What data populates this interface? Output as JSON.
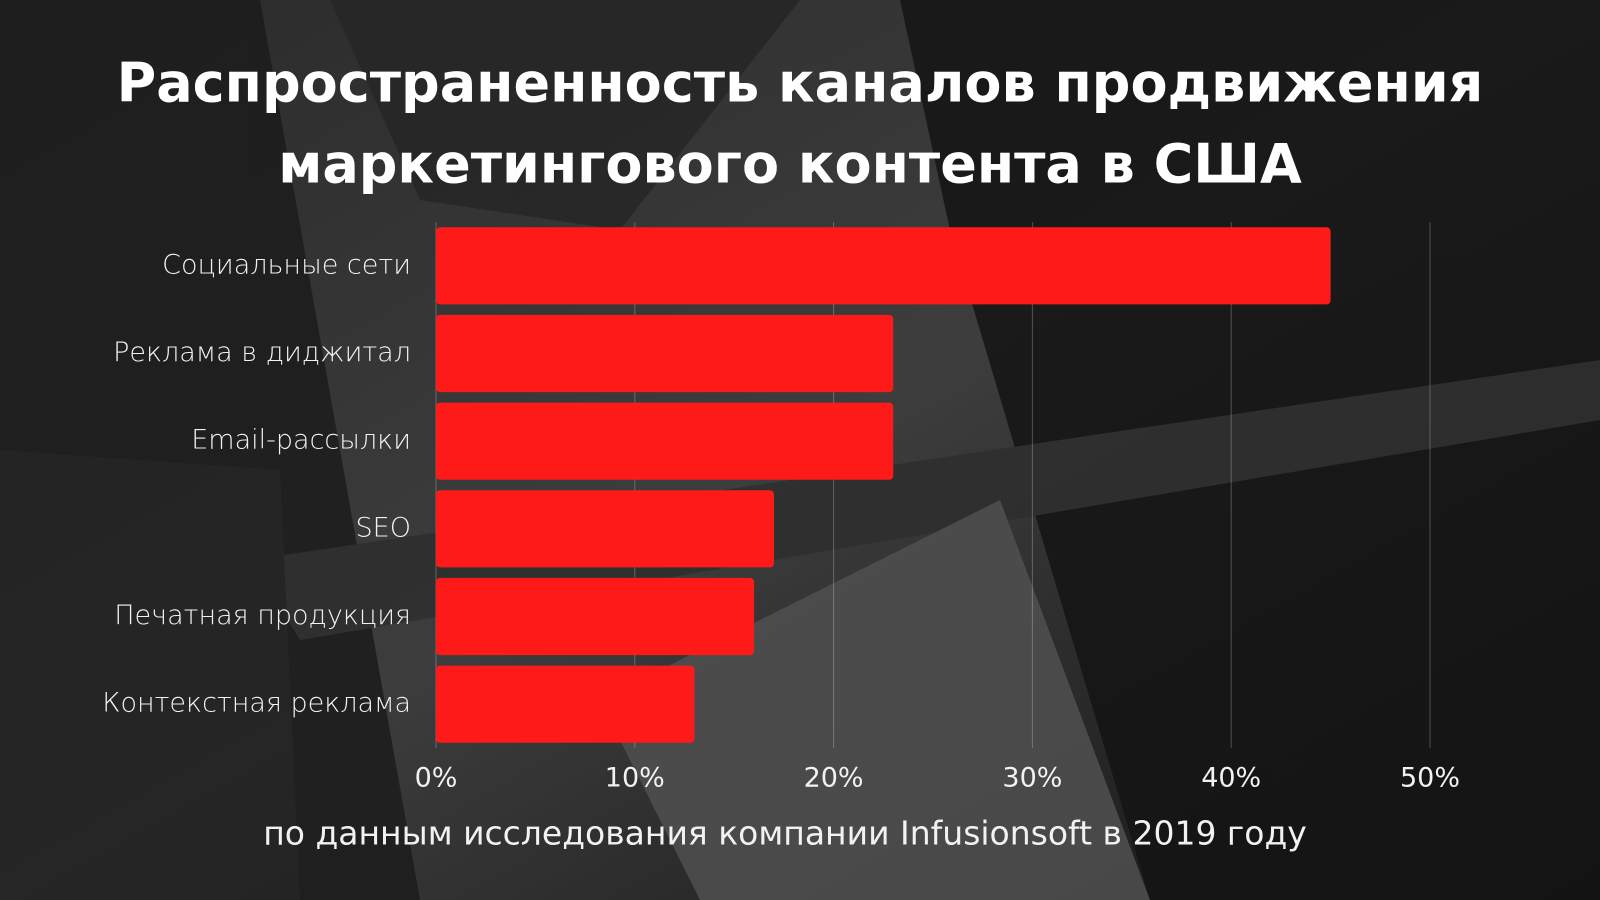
{
  "chart_data": {
    "type": "barh",
    "title": [
      "Распространенность каналов продвижения",
      "маркетингового контента в США"
    ],
    "source": "по данным исследования компании  Infusionsoft в 2019 году",
    "categories": [
      "Социальные сети",
      "Реклама в диджитал",
      "Email-рассылки",
      "SEO",
      "Печатная продукция",
      "Контекстная реклама"
    ],
    "values": [
      45,
      23,
      23,
      17,
      16,
      13
    ],
    "color": "#ff1a1a",
    "xlim": [
      0,
      50
    ],
    "xticks": [
      {
        "value": 0,
        "label": "0%"
      },
      {
        "value": 10,
        "label": "10%"
      },
      {
        "value": 20,
        "label": "20%"
      },
      {
        "value": 30,
        "label": "30%"
      },
      {
        "value": 40,
        "label": "40%"
      },
      {
        "value": 50,
        "label": "50%"
      }
    ],
    "grid": true
  }
}
